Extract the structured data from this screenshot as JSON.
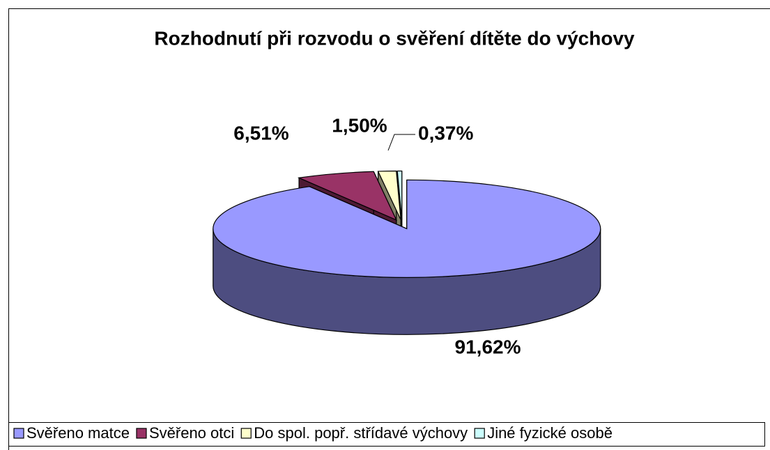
{
  "chart_data": {
    "type": "pie3d",
    "title": "Rozhodnutí při rozvodu o svěření dítěte do výchovy",
    "categories": [
      "Svěřeno matce",
      "Svěřeno otci",
      "Do spol. popř. střídavé výchovy",
      "Jiné fyzické osobě"
    ],
    "values": [
      91.62,
      6.51,
      1.5,
      0.37
    ],
    "value_labels": [
      "91,62%",
      "6,51%",
      "1,50%",
      "0,37%"
    ],
    "colors": [
      "#9999ff",
      "#993366",
      "#ffffcc",
      "#ccffff"
    ],
    "legend": "bottom"
  }
}
